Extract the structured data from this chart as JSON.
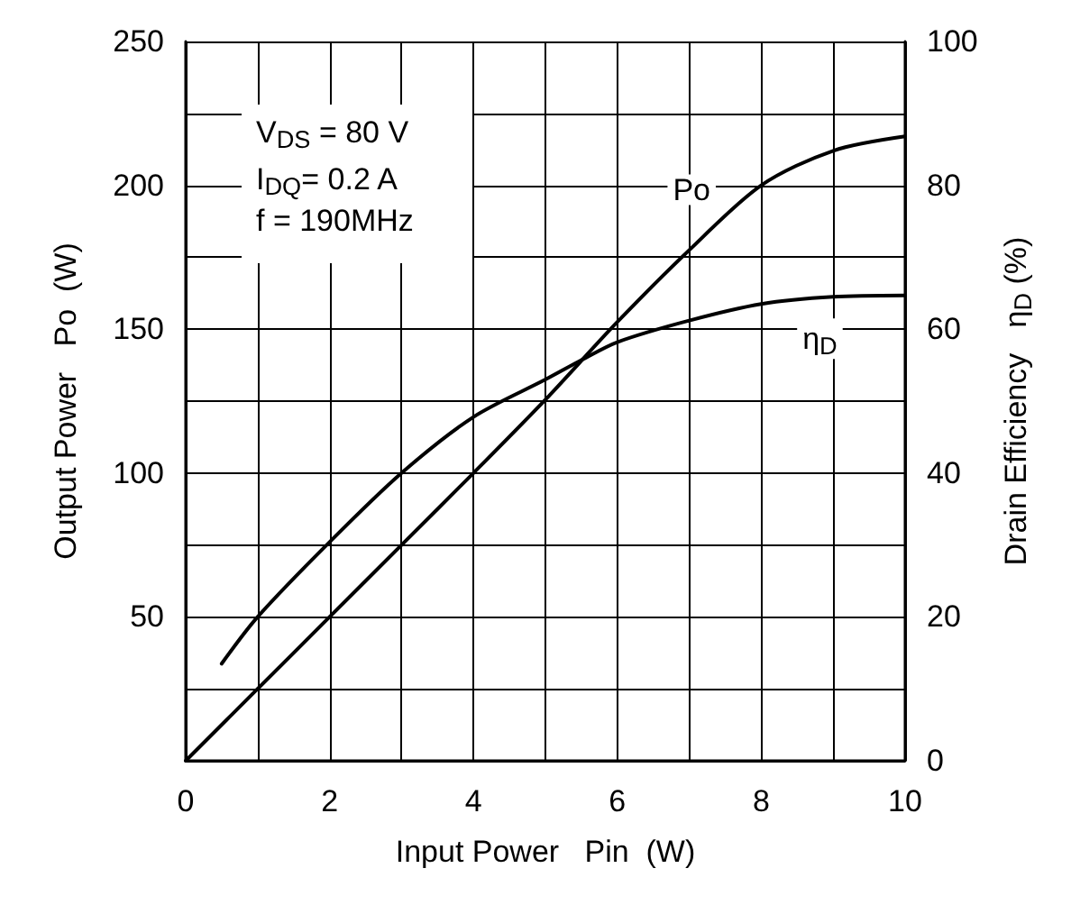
{
  "chart_data": {
    "type": "line",
    "xlabel": "Input Power   Pin  (W)",
    "ylabel": "Output Power   Po  (W)",
    "y2label": "Drain Efficiency   η$_{D}$ (%)",
    "series": [
      {
        "name": "Po",
        "color": "#000000",
        "x": [
          0,
          1,
          2,
          3,
          4,
          5,
          6,
          7,
          8,
          9,
          10
        ],
        "values": [
          0,
          25,
          50,
          75,
          100,
          125.5,
          152.5,
          177.5,
          200,
          212,
          217
        ]
      },
      {
        "name": "η$_{D}$",
        "color": "#000000",
        "axis": "y2",
        "x": [
          0.5,
          1,
          2,
          3,
          4,
          5,
          5.5,
          6,
          7,
          8,
          9,
          10
        ],
        "values": [
          13.5,
          20,
          30.4,
          40,
          47.8,
          53,
          55.7,
          58.2,
          61.2,
          63.5,
          64.5,
          64.7
        ]
      }
    ],
    "xlim": [
      0,
      10
    ],
    "xticks": [
      0,
      {
        "value": 1,
        "label": null
      },
      2,
      {
        "value": 3,
        "label": null
      },
      4,
      {
        "value": 5,
        "label": null
      },
      6,
      {
        "value": 7,
        "label": null
      },
      8,
      {
        "value": 9,
        "label": null
      },
      10
    ],
    "ylim": [
      0,
      250
    ],
    "yticks": [
      {
        "value": 0,
        "label": null
      },
      {
        "value": 25,
        "label": null
      },
      50,
      {
        "value": 75,
        "label": null
      },
      100,
      {
        "value": 125,
        "label": null
      },
      150,
      {
        "value": 175,
        "label": null
      },
      200,
      {
        "value": 225,
        "label": null
      },
      250
    ],
    "y2lim": [
      0,
      100
    ],
    "y2ticks": [
      0,
      20,
      40,
      60,
      80,
      100
    ],
    "annotations": [
      "V$_{DS}$ = 80 V",
      "I$_{DQ}$= 0.2 A",
      "f = 190MHz"
    ],
    "grid": true,
    "marker": "none",
    "line_style": "solid"
  }
}
